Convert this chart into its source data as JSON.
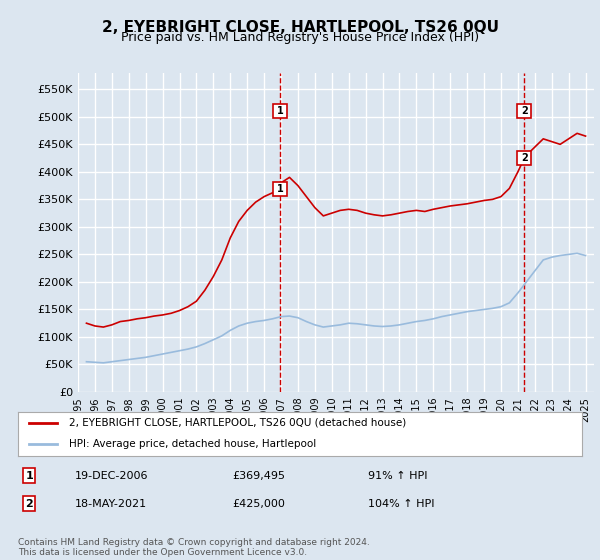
{
  "title": "2, EYEBRIGHT CLOSE, HARTLEPOOL, TS26 0QU",
  "subtitle": "Price paid vs. HM Land Registry's House Price Index (HPI)",
  "ylabel_ticks": [
    "£0",
    "£50K",
    "£100K",
    "£150K",
    "£200K",
    "£250K",
    "£300K",
    "£350K",
    "£400K",
    "£450K",
    "£500K",
    "£550K"
  ],
  "ytick_values": [
    0,
    50000,
    100000,
    150000,
    200000,
    250000,
    300000,
    350000,
    400000,
    450000,
    500000,
    550000
  ],
  "ylim": [
    0,
    580000
  ],
  "xlim_start": 1995.0,
  "xlim_end": 2025.5,
  "background_color": "#dce6f0",
  "plot_bg_color": "#dce6f0",
  "grid_color": "#ffffff",
  "red_line_color": "#cc0000",
  "blue_line_color": "#99bbdd",
  "marker1_x": 2006.96,
  "marker1_y": 369495,
  "marker2_x": 2021.38,
  "marker2_y": 425000,
  "marker1_label": "1",
  "marker2_label": "2",
  "marker1_date": "19-DEC-2006",
  "marker1_price": "£369,495",
  "marker1_hpi": "91% ↑ HPI",
  "marker2_date": "18-MAY-2021",
  "marker2_price": "£425,000",
  "marker2_hpi": "104% ↑ HPI",
  "legend_line1": "2, EYEBRIGHT CLOSE, HARTLEPOOL, TS26 0QU (detached house)",
  "legend_line2": "HPI: Average price, detached house, Hartlepool",
  "footer": "Contains HM Land Registry data © Crown copyright and database right 2024.\nThis data is licensed under the Open Government Licence v3.0.",
  "red_data": {
    "years": [
      1995.5,
      1996.0,
      1996.5,
      1997.0,
      1997.5,
      1998.0,
      1998.5,
      1999.0,
      1999.5,
      2000.0,
      2000.5,
      2001.0,
      2001.5,
      2002.0,
      2002.5,
      2003.0,
      2003.5,
      2004.0,
      2004.5,
      2005.0,
      2005.5,
      2006.0,
      2006.5,
      2006.96,
      2007.0,
      2007.5,
      2008.0,
      2008.5,
      2009.0,
      2009.5,
      2010.0,
      2010.5,
      2011.0,
      2011.5,
      2012.0,
      2012.5,
      2013.0,
      2013.5,
      2014.0,
      2014.5,
      2015.0,
      2015.5,
      2016.0,
      2016.5,
      2017.0,
      2017.5,
      2018.0,
      2018.5,
      2019.0,
      2019.5,
      2020.0,
      2020.5,
      2021.0,
      2021.38,
      2021.5,
      2022.0,
      2022.5,
      2023.0,
      2023.5,
      2024.0,
      2024.5,
      2025.0
    ],
    "values": [
      125000,
      120000,
      118000,
      122000,
      128000,
      130000,
      133000,
      135000,
      138000,
      140000,
      143000,
      148000,
      155000,
      165000,
      185000,
      210000,
      240000,
      280000,
      310000,
      330000,
      345000,
      355000,
      362000,
      369495,
      380000,
      390000,
      375000,
      355000,
      335000,
      320000,
      325000,
      330000,
      332000,
      330000,
      325000,
      322000,
      320000,
      322000,
      325000,
      328000,
      330000,
      328000,
      332000,
      335000,
      338000,
      340000,
      342000,
      345000,
      348000,
      350000,
      355000,
      370000,
      400000,
      425000,
      430000,
      445000,
      460000,
      455000,
      450000,
      460000,
      470000,
      465000
    ]
  },
  "blue_data": {
    "years": [
      1995.5,
      1996.0,
      1996.5,
      1997.0,
      1997.5,
      1998.0,
      1998.5,
      1999.0,
      1999.5,
      2000.0,
      2000.5,
      2001.0,
      2001.5,
      2002.0,
      2002.5,
      2003.0,
      2003.5,
      2004.0,
      2004.5,
      2005.0,
      2005.5,
      2006.0,
      2006.5,
      2007.0,
      2007.5,
      2008.0,
      2008.5,
      2009.0,
      2009.5,
      2010.0,
      2010.5,
      2011.0,
      2011.5,
      2012.0,
      2012.5,
      2013.0,
      2013.5,
      2014.0,
      2014.5,
      2015.0,
      2015.5,
      2016.0,
      2016.5,
      2017.0,
      2017.5,
      2018.0,
      2018.5,
      2019.0,
      2019.5,
      2020.0,
      2020.5,
      2021.0,
      2021.5,
      2022.0,
      2022.5,
      2023.0,
      2023.5,
      2024.0,
      2024.5,
      2025.0
    ],
    "values": [
      55000,
      54000,
      53000,
      55000,
      57000,
      59000,
      61000,
      63000,
      66000,
      69000,
      72000,
      75000,
      78000,
      82000,
      88000,
      95000,
      102000,
      112000,
      120000,
      125000,
      128000,
      130000,
      133000,
      137000,
      138000,
      135000,
      128000,
      122000,
      118000,
      120000,
      122000,
      125000,
      124000,
      122000,
      120000,
      119000,
      120000,
      122000,
      125000,
      128000,
      130000,
      133000,
      137000,
      140000,
      143000,
      146000,
      148000,
      150000,
      152000,
      155000,
      162000,
      180000,
      200000,
      220000,
      240000,
      245000,
      248000,
      250000,
      252000,
      248000
    ]
  },
  "xtick_years": [
    1995,
    1996,
    1997,
    1998,
    1999,
    2000,
    2001,
    2002,
    2003,
    2004,
    2005,
    2006,
    2007,
    2008,
    2009,
    2010,
    2011,
    2012,
    2013,
    2014,
    2015,
    2016,
    2017,
    2018,
    2019,
    2020,
    2021,
    2022,
    2023,
    2024,
    2025
  ]
}
